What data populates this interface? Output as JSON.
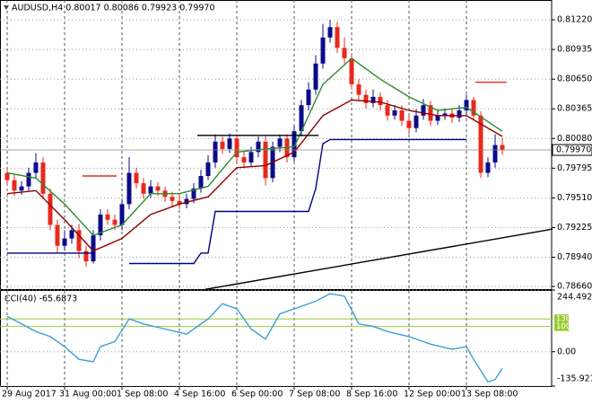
{
  "chart_data": [
    {
      "type": "candlestick",
      "title": "AUDUSD,H4 0.80017 0.80086 0.79923 0.79970",
      "open": [
        0.7975,
        0.7968,
        0.7958,
        0.7962,
        0.7975,
        0.7985,
        0.7955,
        0.7925,
        0.7905,
        0.7912,
        0.792,
        0.79,
        0.789,
        0.7915,
        0.7935,
        0.793,
        0.7925,
        0.7945,
        0.7975,
        0.7965,
        0.7955,
        0.7962,
        0.7958,
        0.7952,
        0.7948,
        0.7945,
        0.795,
        0.796,
        0.7972,
        0.7985,
        0.8005,
        0.7998,
        0.8008,
        0.799,
        0.7985,
        0.7995,
        0.8005,
        0.797,
        0.8,
        0.8008,
        0.799,
        0.8015,
        0.804,
        0.8055,
        0.808,
        0.8105,
        0.8115,
        0.8095,
        0.8085,
        0.806,
        0.805,
        0.8042,
        0.8048,
        0.804,
        0.803,
        0.8035,
        0.8025,
        0.8018,
        0.803,
        0.804,
        0.8025,
        0.803,
        0.8032,
        0.8028,
        0.8035,
        0.8045,
        0.803,
        0.7975,
        0.7985,
        0.80017
      ],
      "high": [
        0.798,
        0.7973,
        0.7967,
        0.798,
        0.7994,
        0.799,
        0.796,
        0.793,
        0.792,
        0.7925,
        0.7926,
        0.7905,
        0.792,
        0.794,
        0.794,
        0.7935,
        0.795,
        0.799,
        0.798,
        0.797,
        0.7968,
        0.7966,
        0.7962,
        0.7957,
        0.7953,
        0.7955,
        0.7965,
        0.7978,
        0.7992,
        0.8012,
        0.801,
        0.8013,
        0.8012,
        0.7995,
        0.8,
        0.801,
        0.801,
        0.8005,
        0.8012,
        0.8012,
        0.802,
        0.8045,
        0.8062,
        0.8088,
        0.8118,
        0.8122,
        0.812,
        0.8105,
        0.809,
        0.8065,
        0.8055,
        0.8055,
        0.8052,
        0.8045,
        0.804,
        0.804,
        0.803,
        0.8036,
        0.8046,
        0.8044,
        0.8035,
        0.8037,
        0.8036,
        0.804,
        0.805,
        0.8048,
        0.8034,
        0.799,
        0.8012,
        0.80086
      ],
      "low": [
        0.7963,
        0.7953,
        0.7954,
        0.7958,
        0.797,
        0.795,
        0.792,
        0.7898,
        0.79,
        0.7907,
        0.7893,
        0.7885,
        0.7888,
        0.791,
        0.7925,
        0.792,
        0.792,
        0.794,
        0.796,
        0.795,
        0.7951,
        0.7953,
        0.7947,
        0.7943,
        0.794,
        0.7941,
        0.7946,
        0.7956,
        0.7968,
        0.798,
        0.7993,
        0.7994,
        0.7985,
        0.798,
        0.7981,
        0.799,
        0.7963,
        0.7966,
        0.7995,
        0.7985,
        0.7986,
        0.801,
        0.8035,
        0.805,
        0.8075,
        0.81,
        0.809,
        0.808,
        0.8055,
        0.8045,
        0.8037,
        0.8038,
        0.8035,
        0.8025,
        0.8026,
        0.802,
        0.8012,
        0.8014,
        0.8026,
        0.802,
        0.8021,
        0.8026,
        0.8023,
        0.8024,
        0.8031,
        0.8026,
        0.797,
        0.7971,
        0.798,
        0.79923
      ],
      "close": [
        0.7968,
        0.7958,
        0.7962,
        0.7975,
        0.7985,
        0.7955,
        0.7925,
        0.7905,
        0.7912,
        0.792,
        0.79,
        0.789,
        0.7915,
        0.7935,
        0.793,
        0.7925,
        0.7945,
        0.7975,
        0.7965,
        0.7955,
        0.7962,
        0.7958,
        0.7952,
        0.7948,
        0.7945,
        0.795,
        0.796,
        0.7972,
        0.7985,
        0.8005,
        0.7998,
        0.8008,
        0.799,
        0.7985,
        0.7995,
        0.8005,
        0.797,
        0.8,
        0.8008,
        0.799,
        0.8015,
        0.804,
        0.8055,
        0.808,
        0.8105,
        0.8115,
        0.8095,
        0.8085,
        0.806,
        0.805,
        0.8042,
        0.8048,
        0.804,
        0.803,
        0.8035,
        0.8025,
        0.8018,
        0.803,
        0.804,
        0.8025,
        0.803,
        0.8032,
        0.8028,
        0.8035,
        0.8045,
        0.803,
        0.7975,
        0.7985,
        0.80017,
        0.7997
      ],
      "up_color": "#0b0b8a",
      "down_color": "#e8291c",
      "xlim": [
        -1,
        75.875
      ],
      "ylim": [
        0.78634,
        0.8141
      ],
      "yticks": [
        {
          "value": 0.8122,
          "label": "0.81220"
        },
        0.80935,
        {
          "value": 0.8065,
          "label": "0.80650"
        },
        0.80365,
        {
          "value": 0.8008,
          "label": "0.80080"
        },
        0.79795,
        {
          "value": 0.7951,
          "label": "0.79510"
        },
        0.79225,
        {
          "value": 0.7894,
          "label": "0.78940"
        },
        {
          "value": 0.7866,
          "label": "0.78660"
        }
      ],
      "xticks": [
        {
          "value": 0,
          "label": "29 Aug 2017"
        },
        {
          "value": 8,
          "label": "31 Aug 00:00"
        },
        {
          "value": 16,
          "label": "1 Sep 08:00"
        },
        {
          "value": 24,
          "label": "4 Sep 16:00"
        },
        {
          "value": 32,
          "label": "6 Sep 00:00"
        },
        {
          "value": 40,
          "label": "7 Sep 08:00"
        },
        {
          "value": 48,
          "label": "8 Sep 16:00"
        },
        {
          "value": 56,
          "label": "12 Sep 00:00"
        },
        {
          "value": 64,
          "label": "13 Sep 08:00"
        }
      ],
      "grid": true,
      "last_price": {
        "value": 0.7997,
        "label": "0.79970"
      },
      "lines": [
        {
          "color": "#2e8b2e",
          "x": [
            0,
            4,
            8,
            12,
            16,
            20,
            24,
            28,
            32,
            36,
            40,
            44,
            48,
            52,
            56,
            60,
            64,
            69
          ],
          "values": [
            0.7975,
            0.797,
            0.7945,
            0.7915,
            0.7925,
            0.7955,
            0.7955,
            0.7962,
            0.7995,
            0.7998,
            0.8,
            0.806,
            0.8085,
            0.8065,
            0.8048,
            0.8035,
            0.8038,
            0.8015
          ]
        },
        {
          "color": "#8b0000",
          "x": [
            0,
            4,
            8,
            12,
            16,
            20,
            24,
            28,
            32,
            36,
            40,
            44,
            48,
            52,
            56,
            60,
            64,
            69
          ],
          "values": [
            0.7955,
            0.7958,
            0.793,
            0.79,
            0.7912,
            0.7935,
            0.7945,
            0.7952,
            0.798,
            0.7982,
            0.7995,
            0.803,
            0.8045,
            0.8043,
            0.8035,
            0.803,
            0.803,
            0.801
          ]
        },
        {
          "color": "#000080",
          "x": [
            0,
            12,
            14,
            17,
            26,
            27,
            28,
            29,
            42,
            43,
            44,
            45,
            64
          ],
          "values": [
            0.7898,
            0.7898,
            null,
            0.7888,
            0.7888,
            0.7898,
            0.7898,
            0.7938,
            0.7938,
            0.796,
            0.8003,
            0.8007,
            0.8007
          ]
        },
        {
          "color": "#000000",
          "x": [
            27.5,
            76
          ],
          "values": [
            0.7863,
            0.7921
          ]
        },
        {
          "color": "#000000",
          "x": [
            26.5,
            43.4
          ],
          "values": [
            0.8011,
            0.8011
          ]
        },
        {
          "color": "#e8291c",
          "x": [
            10.5,
            15.25
          ],
          "values": [
            0.7972,
            0.7972
          ]
        },
        {
          "color": "#e8291c",
          "x": [
            65.25,
            69.6
          ],
          "values": [
            0.8062,
            0.8062
          ]
        }
      ]
    },
    {
      "type": "line",
      "title": "CCI(40) -65.6873",
      "x": [
        0,
        2,
        4,
        6,
        8,
        10,
        12,
        13,
        15,
        17,
        19,
        22,
        25,
        28,
        30,
        32,
        34,
        36,
        38,
        40,
        43,
        45,
        47,
        49,
        51,
        53,
        56,
        59,
        62,
        64,
        65,
        67,
        68,
        69
      ],
      "values": [
        140,
        110,
        80,
        60,
        20,
        -30,
        -40,
        20,
        40,
        130,
        110,
        90,
        70,
        130,
        190,
        170,
        90,
        50,
        150,
        170,
        200,
        230,
        220,
        110,
        100,
        80,
        60,
        30,
        10,
        20,
        -30,
        -120,
        -110,
        -65.6873
      ],
      "color": "#3a9fd6",
      "ylim": [
        -135.9215,
        244.4924
      ],
      "yticks": [
        244.4924,
        {
          "value": 0,
          "label": "0.00"
        },
        -135.9215
      ],
      "levels": [
        130,
        100
      ],
      "level_color": "#9acd32"
    }
  ]
}
